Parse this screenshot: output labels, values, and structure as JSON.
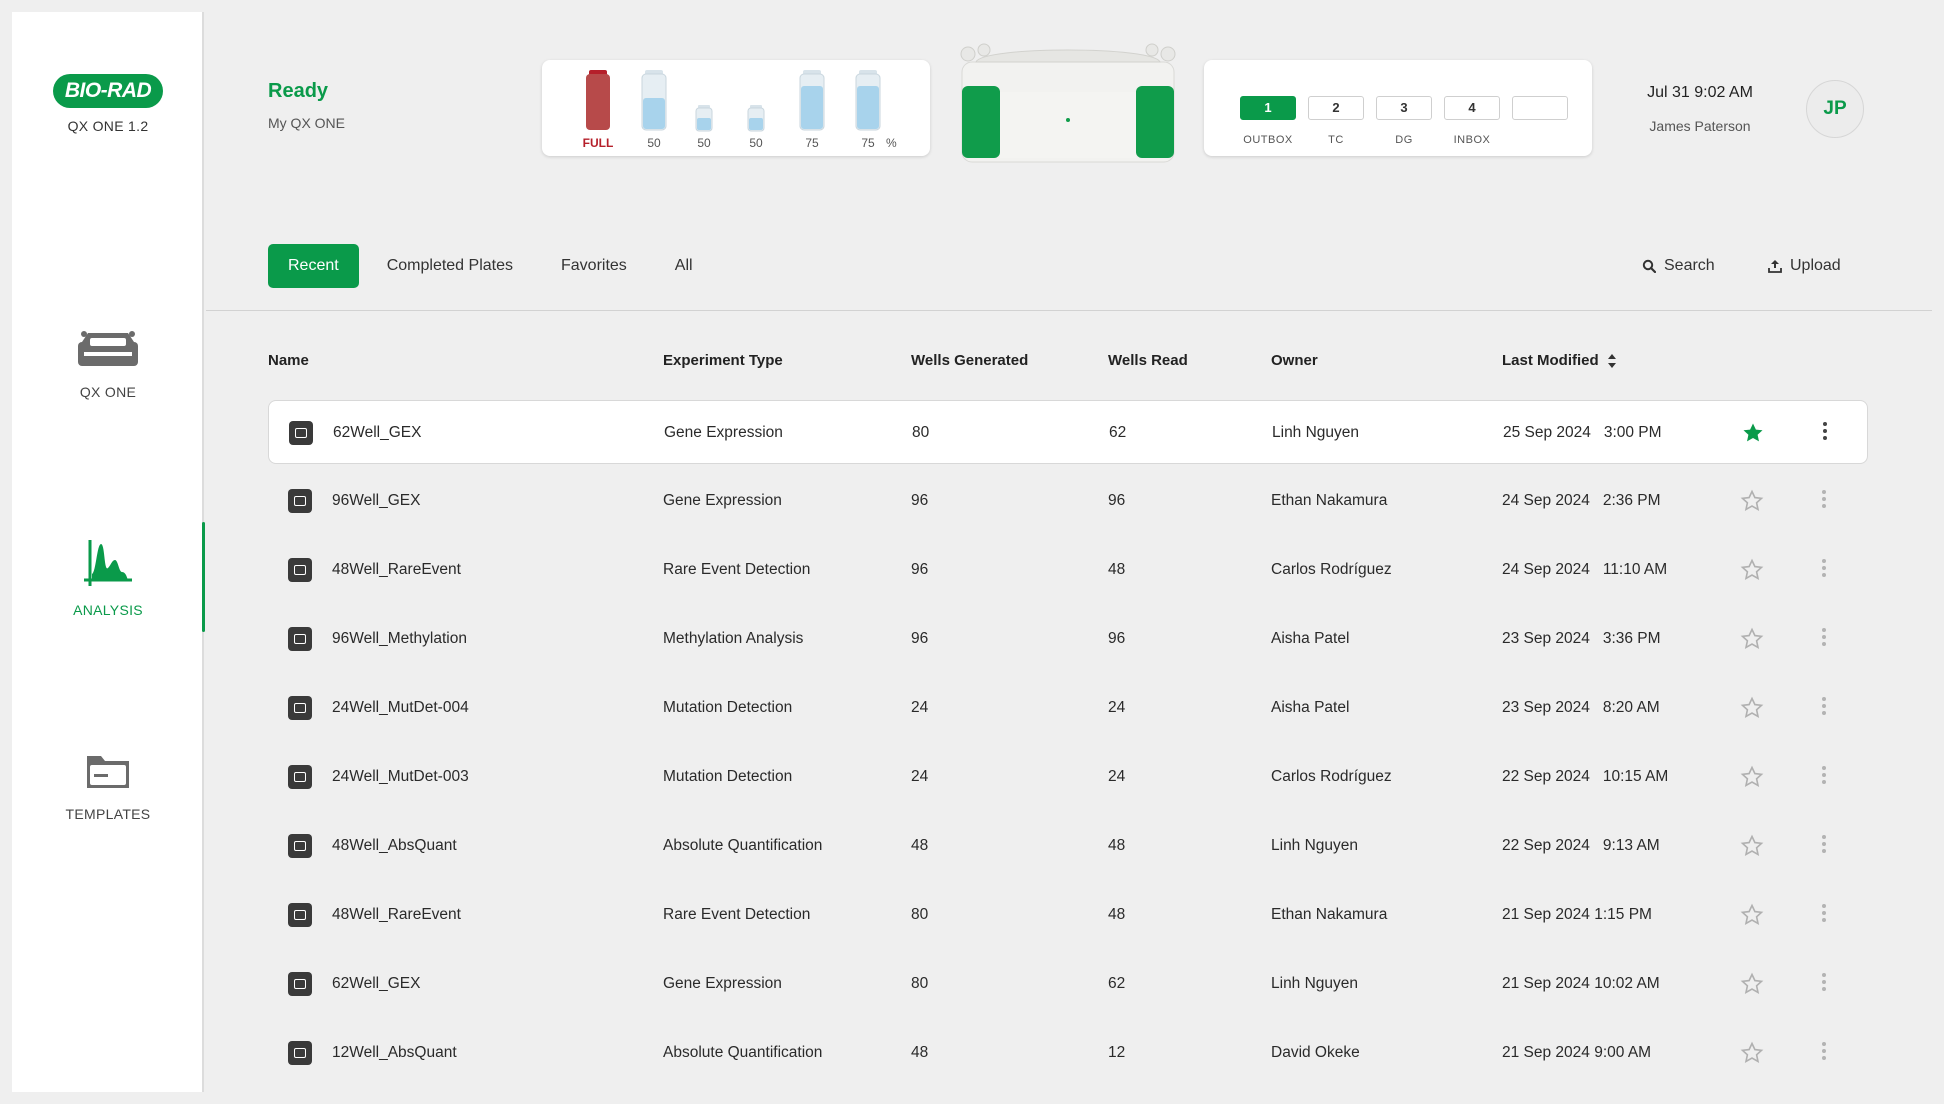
{
  "app": {
    "logo_text": "BIO-RAD",
    "version": "QX ONE 1.2",
    "brand_color": "#0a9a4a"
  },
  "sidebar": {
    "items": [
      {
        "label": "QX ONE",
        "icon": "instrument-icon"
      },
      {
        "label": "ANALYSIS",
        "icon": "analysis-chart-icon",
        "active": true
      },
      {
        "label": "TEMPLATES",
        "icon": "template-folder-icon"
      }
    ]
  },
  "header": {
    "status": "Ready",
    "instrument_name": "My QX ONE",
    "reagents": [
      {
        "label": "FULL",
        "level": 100,
        "color": "#b51f2a"
      },
      {
        "label": "50",
        "level": 50
      },
      {
        "label": "50",
        "level": 50
      },
      {
        "label": "50",
        "level": 50
      },
      {
        "label": "75",
        "level": 75
      },
      {
        "label": "75",
        "level": 75
      }
    ],
    "reagent_unit": "%",
    "slots": [
      {
        "number": "1",
        "label": "OUTBOX",
        "active": true
      },
      {
        "number": "2",
        "label": "TC"
      },
      {
        "number": "3",
        "label": "DG"
      },
      {
        "number": "4",
        "label": "INBOX"
      },
      {
        "number": "",
        "label": ""
      }
    ],
    "datetime": "Jul 31 9:02 AM",
    "user_name": "James Paterson",
    "user_initials": "JP"
  },
  "tabs": [
    {
      "label": "Recent",
      "active": true
    },
    {
      "label": "Completed Plates"
    },
    {
      "label": "Favorites"
    },
    {
      "label": "All"
    }
  ],
  "actions": {
    "search_label": "Search",
    "upload_label": "Upload"
  },
  "table": {
    "columns": [
      "Name",
      "Experiment Type",
      "Wells Generated",
      "Wells Read",
      "Owner",
      "Last Modified"
    ],
    "rows": [
      {
        "name": "62Well_GEX",
        "type": "Gene Expression",
        "generated": "80",
        "read": "62",
        "owner": "Linh Nguyen",
        "modified": "25 Sep 2024   3:00 PM",
        "favorite": true
      },
      {
        "name": "96Well_GEX",
        "type": "Gene Expression",
        "generated": "96",
        "read": "96",
        "owner": "Ethan Nakamura",
        "modified": "24 Sep 2024   2:36 PM",
        "favorite": false
      },
      {
        "name": "48Well_RareEvent",
        "type": "Rare Event Detection",
        "generated": "96",
        "read": "48",
        "owner": "Carlos Rodríguez",
        "modified": "24 Sep 2024   11:10 AM",
        "favorite": false
      },
      {
        "name": "96Well_Methylation",
        "type": "Methylation Analysis",
        "generated": "96",
        "read": "96",
        "owner": "Aisha Patel",
        "modified": "23 Sep 2024   3:36 PM",
        "favorite": false
      },
      {
        "name": "24Well_MutDet-004",
        "type": "Mutation Detection",
        "generated": "24",
        "read": "24",
        "owner": "Aisha Patel",
        "modified": "23 Sep 2024   8:20 AM",
        "favorite": false
      },
      {
        "name": "24Well_MutDet-003",
        "type": "Mutation Detection",
        "generated": "24",
        "read": "24",
        "owner": "Carlos Rodríguez",
        "modified": "22 Sep 2024   10:15 AM",
        "favorite": false
      },
      {
        "name": "48Well_AbsQuant",
        "type": "Absolute Quantification",
        "generated": "48",
        "read": "48",
        "owner": "Linh Nguyen",
        "modified": "22 Sep 2024   9:13 AM",
        "favorite": false
      },
      {
        "name": "48Well_RareEvent",
        "type": "Rare Event Detection",
        "generated": "80",
        "read": "48",
        "owner": "Ethan Nakamura",
        "modified": "21 Sep 2024 1:15 PM",
        "favorite": false
      },
      {
        "name": "62Well_GEX",
        "type": "Gene Expression",
        "generated": "80",
        "read": "62",
        "owner": "Linh Nguyen",
        "modified": "21 Sep 2024 10:02 AM",
        "favorite": false
      },
      {
        "name": "12Well_AbsQuant",
        "type": "Absolute Quantification",
        "generated": "48",
        "read": "12",
        "owner": "David Okeke",
        "modified": "21 Sep 2024 9:00 AM",
        "favorite": false
      }
    ]
  }
}
